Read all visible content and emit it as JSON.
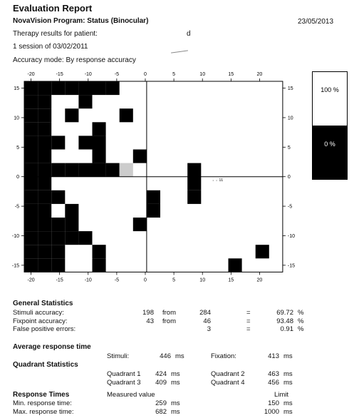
{
  "header": {
    "title": "Evaluation Report",
    "program": "NovaVision Program: Status  (Binocular)",
    "date": "23/05/2013",
    "therapy_label": "Therapy results for patient:",
    "patient_mark": "d",
    "session": "1 session of 03/02/2011",
    "accuracy_mode": "Accuracy mode: By response accuracy"
  },
  "grid": {
    "x_ticks": [
      "-20",
      "-15",
      "-10",
      "-5",
      "0",
      "5",
      "10",
      "15",
      "20"
    ],
    "y_ticks": [
      "15",
      "10",
      "5",
      "0",
      "-5",
      "-10",
      "-15"
    ],
    "filled_cells_hint": "black = missed stimuli",
    "stray_marks": "· · ¹¹"
  },
  "legend": {
    "top_label": "100 %",
    "bottom_label": "0 %",
    "top_color": "#ffffff",
    "bottom_color": "#000000"
  },
  "general": {
    "title": "General Statistics",
    "rows": [
      {
        "label": "Stimuli accuracy:",
        "a": "198",
        "from": "from",
        "b": "284",
        "eq": "=",
        "val": "69.72",
        "unit": "%"
      },
      {
        "label": "Fixpoint accuracy:",
        "a": "43",
        "from": "from",
        "b": "46",
        "eq": "=",
        "val": "93.48",
        "unit": "%"
      },
      {
        "label": "False positive errors:",
        "a": "",
        "from": "",
        "b": "3",
        "eq": "=",
        "val": "0.91",
        "unit": "%"
      }
    ]
  },
  "avg_response": {
    "title": "Average response time",
    "stimuli_label": "Stimuli:",
    "stimuli_val": "446",
    "fixation_label": "Fixation:",
    "fixation_val": "413",
    "unit": "ms"
  },
  "quadrant": {
    "title": "Quadrant Statistics",
    "q1_label": "Quadrant 1",
    "q1_val": "424",
    "q2_label": "Quadrant 2",
    "q2_val": "463",
    "q3_label": "Quadrant 3",
    "q3_val": "409",
    "q4_label": "Quadrant 4",
    "q4_val": "456",
    "unit": "ms"
  },
  "response_times": {
    "title": "Response Times",
    "measured_label": "Measured value",
    "limit_label": "Limit",
    "min_label": "Min. response time:",
    "min_val": "259",
    "min_limit": "150",
    "max_label": "Max. response time:",
    "max_val": "682",
    "max_limit": "1000",
    "unit": "ms"
  }
}
